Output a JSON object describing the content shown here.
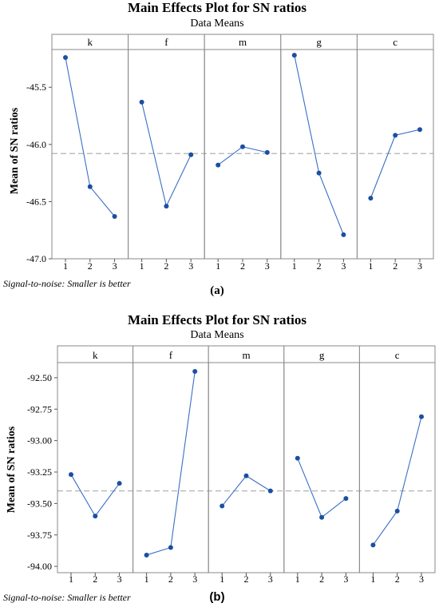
{
  "chart_data": [
    {
      "type": "line",
      "title": "Main Effects Plot for SN ratios",
      "subtitle": "Data Means",
      "ylabel": "Mean of SN ratios",
      "caption": "(a)",
      "footnote": "Signal-to-noise: Smaller is better",
      "x": [
        "1",
        "2",
        "3"
      ],
      "ylim": [
        -47.0,
        -45.17
      ],
      "yticks": [
        -45.5,
        -46.0,
        -46.5,
        -47.0
      ],
      "ytick_labels": [
        "-45.5",
        "-46.0",
        "-46.5",
        "-47.0"
      ],
      "mean_line": -46.08,
      "grid": false,
      "series": [
        {
          "name": "k",
          "values": [
            -45.24,
            -46.37,
            -46.63
          ]
        },
        {
          "name": "f",
          "values": [
            -45.63,
            -46.54,
            -46.09
          ]
        },
        {
          "name": "m",
          "values": [
            -46.18,
            -46.02,
            -46.07
          ]
        },
        {
          "name": "g",
          "values": [
            -45.22,
            -46.25,
            -46.79
          ]
        },
        {
          "name": "c",
          "values": [
            -46.47,
            -45.92,
            -45.87
          ]
        }
      ],
      "colors": {
        "line": "#3a6fc4",
        "marker": "#1b4fa0",
        "mean_line": "#b3b3b3",
        "frame": "#888888"
      }
    },
    {
      "type": "line",
      "title": "Main Effects Plot for SN ratios",
      "subtitle": "Data Means",
      "ylabel": "Mean of SN ratios",
      "caption": "(b)",
      "footnote": "Signal-to-noise: Smaller is better",
      "x": [
        "1",
        "2",
        "3"
      ],
      "ylim": [
        -94.05,
        -92.38
      ],
      "yticks": [
        -92.5,
        -92.75,
        -93.0,
        -93.25,
        -93.5,
        -93.75,
        -94.0
      ],
      "ytick_labels": [
        "-92.50",
        "-92.75",
        "-93.00",
        "-93.25",
        "-93.50",
        "-93.75",
        "-94.00"
      ],
      "mean_line": -93.4,
      "grid": false,
      "series": [
        {
          "name": "k",
          "values": [
            -93.27,
            -93.6,
            -93.34
          ]
        },
        {
          "name": "f",
          "values": [
            -93.91,
            -93.85,
            -92.45
          ]
        },
        {
          "name": "m",
          "values": [
            -93.52,
            -93.28,
            -93.4
          ]
        },
        {
          "name": "g",
          "values": [
            -93.14,
            -93.61,
            -93.46
          ]
        },
        {
          "name": "c",
          "values": [
            -93.83,
            -93.56,
            -92.81
          ]
        }
      ],
      "colors": {
        "line": "#3a6fc4",
        "marker": "#1b4fa0",
        "mean_line": "#b3b3b3",
        "frame": "#888888"
      }
    }
  ]
}
